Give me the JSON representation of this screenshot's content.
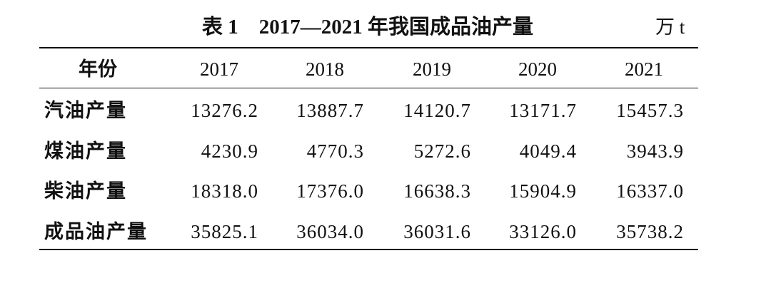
{
  "header": {
    "title": "表 1　2017—2021 年我国成品油产量",
    "unit": "万 t"
  },
  "table": {
    "columns": [
      "年份",
      "2017",
      "2018",
      "2019",
      "2020",
      "2021"
    ],
    "rows": [
      [
        "汽油产量",
        "13276.2",
        "13887.7",
        "14120.7",
        "13171.7",
        "15457.3"
      ],
      [
        "煤油产量",
        "4230.9",
        "4770.3",
        "5272.6",
        "4049.4",
        "3943.9"
      ],
      [
        "柴油产量",
        "18318.0",
        "17376.0",
        "16638.3",
        "15904.9",
        "16337.0"
      ],
      [
        "成品油产量",
        "35825.1",
        "36034.0",
        "36031.6",
        "33126.0",
        "35738.2"
      ]
    ]
  }
}
